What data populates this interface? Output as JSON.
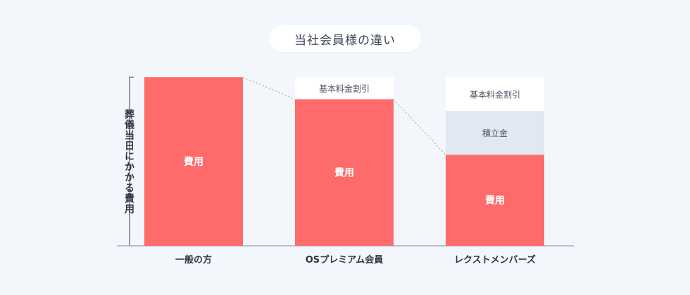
{
  "title": "当社会員様の違い",
  "chart_data": {
    "type": "bar",
    "stacked": true,
    "title": "当社会員様の違い",
    "ylabel": "葬儀当日にかかる費用",
    "xlabel": "",
    "categories": [
      "一般の方",
      "OSプレミアム会員",
      "レクストメンバーズ"
    ],
    "ylim": [
      0,
      100
    ],
    "series": [
      {
        "name": "費用",
        "color": "#ff6b6b",
        "text_color": "#ffffff",
        "values": [
          100,
          87,
          54
        ]
      },
      {
        "name": "積立金",
        "color": "#e1e8f3",
        "text_color": "#4a5160",
        "values": [
          0,
          0,
          26
        ]
      },
      {
        "name": "基本料金割引",
        "color": "#ffffff",
        "text_color": "#4a5160",
        "values": [
          0,
          13,
          20
        ]
      }
    ]
  }
}
